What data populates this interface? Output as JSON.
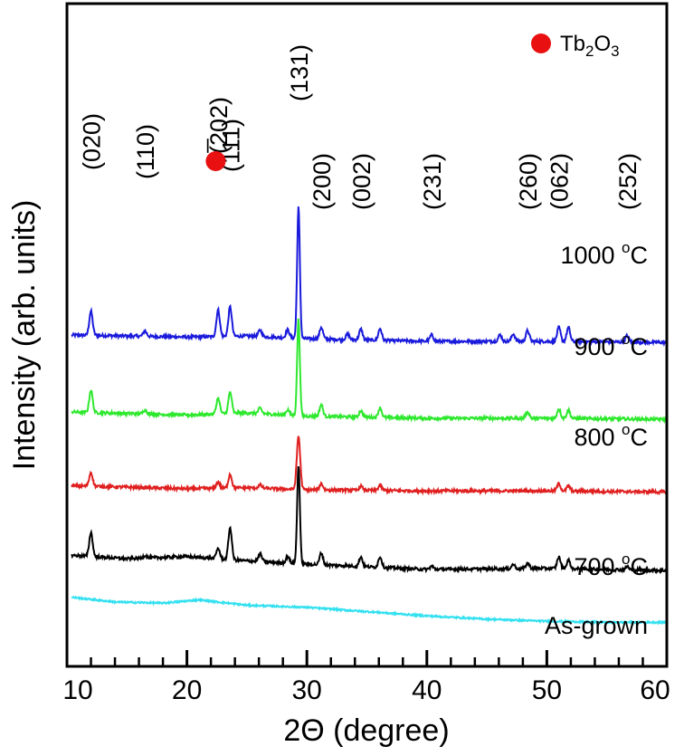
{
  "chart_data": {
    "type": "line",
    "title": "",
    "xlabel": "2Θ (degree)",
    "ylabel": "Intensity (arb. units)",
    "xlim": [
      10,
      60
    ],
    "xticks": [
      "10",
      "20",
      "30",
      "40",
      "50",
      "60"
    ],
    "yticks": [],
    "legend": {
      "marker": "red-circle",
      "text": "Tb",
      "sub1": "2",
      "mid": "O",
      "sub2": "3",
      "position": "top-right"
    },
    "peak_labels": [
      {
        "text": "(020)",
        "x": 12
      },
      {
        "text": "(110)",
        "x": 16.5
      },
      {
        "text": "(̅202)",
        "x": 22.6
      },
      {
        "text": "(111)",
        "x": 23.6
      },
      {
        "text": "(131)",
        "x": 29.3
      },
      {
        "text": "(200)",
        "x": 31.2
      },
      {
        "text": "(002)",
        "x": 34.5
      },
      {
        "text": "(231)",
        "x": 40.4
      },
      {
        "text": "(260)",
        "x": 48.4
      },
      {
        "text": "(062)",
        "x": 51
      },
      {
        "text": "(252)",
        "x": 56.7
      }
    ],
    "tb2o3_marker_x": 22.4,
    "series": [
      {
        "name": "1000 °C",
        "label_main": "1000 ",
        "label_sup": "o",
        "label_unit": "C",
        "color": "#1a1adc",
        "offset": 5.0,
        "baseline": [
          [
            10,
            0.12
          ],
          [
            20,
            0.08
          ],
          [
            25,
            0.1
          ],
          [
            30,
            0.05
          ],
          [
            40,
            0.0
          ],
          [
            50,
            0.0
          ],
          [
            60,
            -0.02
          ]
        ],
        "peaks": [
          [
            12,
            0.45
          ],
          [
            16.5,
            0.1
          ],
          [
            22.6,
            0.5
          ],
          [
            23.6,
            0.55
          ],
          [
            26.1,
            0.12
          ],
          [
            28.4,
            0.15
          ],
          [
            29.3,
            2.45
          ],
          [
            31.2,
            0.22
          ],
          [
            33.4,
            0.1
          ],
          [
            34.5,
            0.2
          ],
          [
            36.1,
            0.22
          ],
          [
            40.4,
            0.12
          ],
          [
            46.1,
            0.12
          ],
          [
            47.2,
            0.14
          ],
          [
            48.4,
            0.2
          ],
          [
            51,
            0.26
          ],
          [
            51.8,
            0.26
          ],
          [
            56.7,
            0.12
          ]
        ]
      },
      {
        "name": "900 °C",
        "label_main": "900 ",
        "label_sup": "o",
        "label_unit": "C",
        "color": "#2ee82e",
        "offset": 3.6,
        "baseline": [
          [
            10,
            0.08
          ],
          [
            20,
            0.02
          ],
          [
            25,
            0.06
          ],
          [
            30,
            0.0
          ],
          [
            40,
            -0.04
          ],
          [
            50,
            -0.04
          ],
          [
            60,
            -0.06
          ]
        ],
        "peaks": [
          [
            12,
            0.42
          ],
          [
            16.5,
            0.08
          ],
          [
            22.6,
            0.3
          ],
          [
            23.6,
            0.4
          ],
          [
            26.1,
            0.1
          ],
          [
            28.4,
            0.1
          ],
          [
            29.3,
            1.8
          ],
          [
            31.2,
            0.22
          ],
          [
            34.5,
            0.12
          ],
          [
            36.1,
            0.18
          ],
          [
            48.4,
            0.12
          ],
          [
            51,
            0.18
          ],
          [
            51.8,
            0.16
          ]
        ]
      },
      {
        "name": "800 °C",
        "label_main": "800 ",
        "label_sup": "o",
        "label_unit": "C",
        "color": "#e02020",
        "offset": 2.3,
        "baseline": [
          [
            10,
            0.0
          ],
          [
            20,
            -0.06
          ],
          [
            25,
            -0.04
          ],
          [
            30,
            -0.08
          ],
          [
            40,
            -0.1
          ],
          [
            50,
            -0.1
          ],
          [
            60,
            -0.12
          ]
        ],
        "peaks": [
          [
            12,
            0.26
          ],
          [
            22.6,
            0.12
          ],
          [
            23.6,
            0.26
          ],
          [
            26.1,
            0.06
          ],
          [
            29.3,
            1.0
          ],
          [
            31.2,
            0.12
          ],
          [
            34.5,
            0.08
          ],
          [
            36.1,
            0.1
          ],
          [
            51,
            0.14
          ],
          [
            51.8,
            0.1
          ]
        ]
      },
      {
        "name": "700 °C",
        "label_main": "700 ",
        "label_sup": "o",
        "label_unit": "C",
        "color": "#000000",
        "offset": 0.85,
        "baseline": [
          [
            10,
            0.15
          ],
          [
            15,
            0.08
          ],
          [
            20,
            0.12
          ],
          [
            25,
            0.04
          ],
          [
            30,
            -0.02
          ],
          [
            40,
            -0.12
          ],
          [
            50,
            -0.1
          ],
          [
            60,
            -0.14
          ]
        ],
        "peaks": [
          [
            12,
            0.45
          ],
          [
            16.5,
            0.05
          ],
          [
            22.6,
            0.2
          ],
          [
            23.6,
            0.6
          ],
          [
            26.1,
            0.15
          ],
          [
            28.4,
            0.12
          ],
          [
            29.3,
            1.85
          ],
          [
            31.2,
            0.22
          ],
          [
            34.5,
            0.18
          ],
          [
            36.1,
            0.2
          ],
          [
            40.4,
            0.06
          ],
          [
            47.2,
            0.08
          ],
          [
            48.4,
            0.1
          ],
          [
            51,
            0.22
          ],
          [
            51.8,
            0.16
          ],
          [
            56.7,
            0.06
          ]
        ]
      },
      {
        "name": "As-grown",
        "label_main": "As-grown",
        "label_sup": "",
        "label_unit": "",
        "color": "#33e0f0",
        "offset": 0.0,
        "baseline": [
          [
            10,
            0.22
          ],
          [
            14,
            0.12
          ],
          [
            18,
            0.1
          ],
          [
            21,
            0.16
          ],
          [
            25,
            0.06
          ],
          [
            30,
            0.02
          ],
          [
            35,
            -0.06
          ],
          [
            40,
            -0.14
          ],
          [
            45,
            -0.2
          ],
          [
            50,
            -0.24
          ],
          [
            55,
            -0.26
          ],
          [
            60,
            -0.26
          ]
        ],
        "peaks": []
      }
    ]
  }
}
